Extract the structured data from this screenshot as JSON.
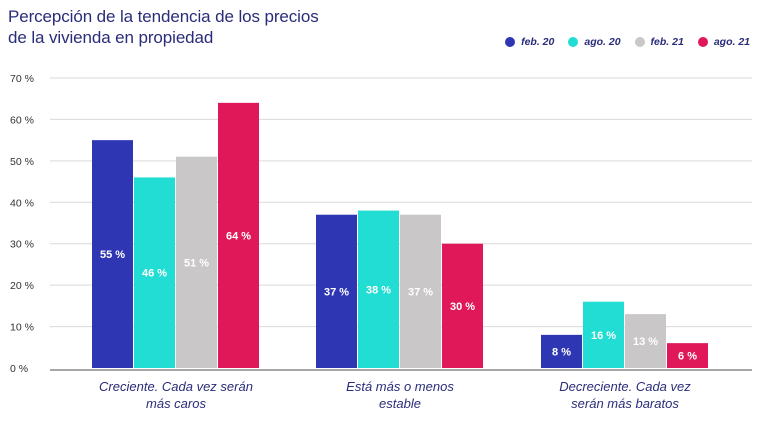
{
  "chart_data": {
    "type": "bar",
    "title": "Percepción de la tendencia de los precios de la vivienda en propiedad",
    "title_lines": [
      "Percepción de la tendencia de los precios",
      "de la vivienda en propiedad"
    ],
    "categories": [
      [
        "Creciente. Cada vez serán",
        "más caros"
      ],
      [
        "Está más o menos",
        "estable"
      ],
      [
        "Decreciente. Cada vez",
        "serán más baratos"
      ]
    ],
    "series": [
      {
        "name": "feb. 20",
        "color": "#2e36b3",
        "values": [
          55,
          37,
          8
        ],
        "labels": [
          "55 %",
          "37 %",
          "8 %"
        ]
      },
      {
        "name": "ago. 20",
        "color": "#22ddd3",
        "values": [
          46,
          38,
          16
        ],
        "labels": [
          "46 %",
          "38 %",
          "16 %"
        ]
      },
      {
        "name": "feb. 21",
        "color": "#c9c7c8",
        "values": [
          51,
          37,
          13
        ],
        "labels": [
          "51 %",
          "37 %",
          "13 %"
        ]
      },
      {
        "name": "ago. 21",
        "color": "#e0185a",
        "values": [
          64,
          30,
          6
        ],
        "labels": [
          "64 %",
          "30 %",
          "6 %"
        ]
      }
    ],
    "yticks": [
      "0 %",
      "10 %",
      "20 %",
      "30 %",
      "40 %",
      "50 %",
      "60 %",
      "70 %"
    ],
    "ylim": [
      0,
      70
    ],
    "grid": true,
    "legend_position": "top-right",
    "xlabel": "",
    "ylabel": ""
  }
}
